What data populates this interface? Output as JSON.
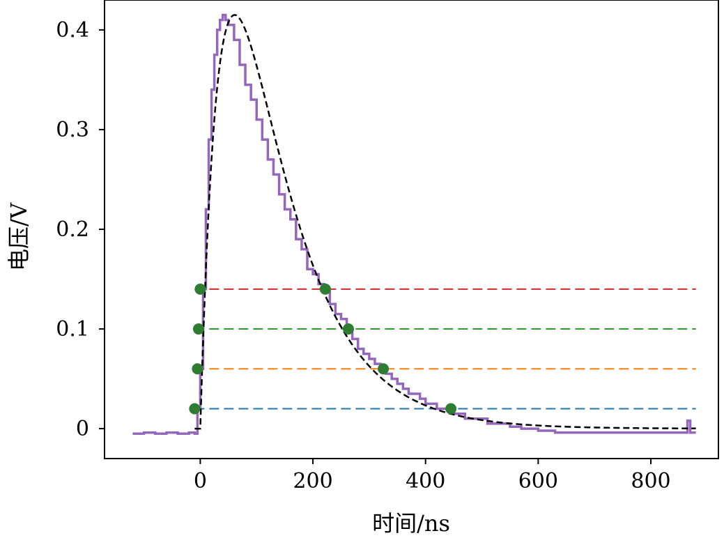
{
  "chart_data": {
    "type": "line",
    "xlabel": "时间/ns",
    "ylabel": "电压/V",
    "xlim": [
      -170,
      920
    ],
    "ylim": [
      -0.03,
      0.43
    ],
    "x_ticks": [
      0,
      200,
      400,
      600,
      800
    ],
    "y_ticks": [
      0,
      0.1,
      0.2,
      0.3,
      0.4
    ],
    "x_tick_labels": [
      "0",
      "200",
      "400",
      "600",
      "800"
    ],
    "y_tick_labels": [
      "0",
      "0.1",
      "0.2",
      "0.3",
      "0.4"
    ],
    "grid": false,
    "legend": "none",
    "thresholds": [
      {
        "y": 0.02,
        "color": "#1f77b4"
      },
      {
        "y": 0.06,
        "color": "#ff7f0e"
      },
      {
        "y": 0.1,
        "color": "#2ca02c"
      },
      {
        "y": 0.14,
        "color": "#d62728"
      }
    ],
    "threshold_x_range": [
      -10,
      880
    ],
    "measured_series": {
      "color": "#9467bd",
      "x": [
        -120,
        -100,
        -80,
        -60,
        -40,
        -20,
        -10,
        -5,
        0,
        5,
        10,
        15,
        20,
        25,
        30,
        35,
        40,
        45,
        50,
        55,
        60,
        70,
        80,
        90,
        100,
        110,
        120,
        130,
        140,
        150,
        160,
        170,
        180,
        190,
        200,
        210,
        220,
        230,
        240,
        250,
        260,
        270,
        280,
        290,
        300,
        310,
        320,
        330,
        340,
        350,
        360,
        370,
        380,
        390,
        400,
        410,
        420,
        430,
        440,
        450,
        470,
        490,
        510,
        530,
        550,
        570,
        600,
        630,
        660,
        700,
        740,
        780,
        820,
        860,
        865,
        870,
        880
      ],
      "y": [
        -0.005,
        -0.004,
        -0.005,
        -0.004,
        -0.005,
        -0.004,
        -0.005,
        0.02,
        0.06,
        0.14,
        0.22,
        0.29,
        0.34,
        0.375,
        0.4,
        0.41,
        0.415,
        0.41,
        0.405,
        0.405,
        0.39,
        0.365,
        0.345,
        0.33,
        0.31,
        0.29,
        0.27,
        0.255,
        0.235,
        0.22,
        0.21,
        0.19,
        0.18,
        0.16,
        0.155,
        0.145,
        0.14,
        0.125,
        0.115,
        0.11,
        0.1,
        0.09,
        0.08,
        0.075,
        0.07,
        0.065,
        0.06,
        0.055,
        0.05,
        0.045,
        0.04,
        0.035,
        0.035,
        0.03,
        0.025,
        0.025,
        0.02,
        0.02,
        0.02,
        0.015,
        0.01,
        0.01,
        0.005,
        0.005,
        0.002,
        0.0,
        -0.002,
        -0.004,
        -0.004,
        -0.004,
        -0.004,
        -0.004,
        -0.004,
        -0.004,
        0.008,
        -0.004,
        -0.004
      ]
    },
    "fit_series": {
      "color": "#000000",
      "dash": "dashed",
      "tr_ns": 40,
      "td_ns": 100,
      "k": 1.0,
      "x_range": [
        -10,
        880
      ]
    },
    "crossing_points": {
      "color": "#2e7d32",
      "x": [
        -10,
        -5,
        -3,
        0,
        222,
        263,
        325,
        445
      ],
      "y": [
        0.02,
        0.06,
        0.1,
        0.14,
        0.14,
        0.1,
        0.06,
        0.02
      ]
    }
  }
}
